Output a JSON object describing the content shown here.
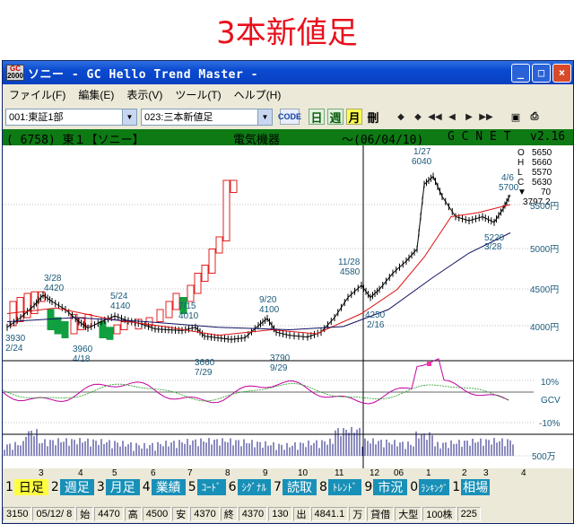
{
  "banner": {
    "title": "3本新値足"
  },
  "window": {
    "icon_text": "GC",
    "icon_sub": "2000",
    "title": "ソニー - GC Hello Trend Master -",
    "min": "_",
    "max": "□",
    "close": "×"
  },
  "menu": [
    "ファイル(F)",
    "編集(E)",
    "表示(V)",
    "ツール(T)",
    "ヘルプ(H)"
  ],
  "toolbar": {
    "market": "001:東証1部",
    "chart_type": "023:三本新値足",
    "code_btn": "CODE",
    "day_btn": "日",
    "week_btn": "週",
    "month_btn": "月",
    "list_btn": "刪",
    "nav": [
      "◆",
      "◆",
      "◀◀",
      "◀",
      "▶",
      "▶▶"
    ]
  },
  "info": {
    "code": "( 6758) 東１【ソニー】",
    "sector": "電気機器",
    "date": "〜(06/04/10)",
    "source": "G C N E T",
    "version": "v2.16"
  },
  "ohlc": {
    "o": "O",
    "o_val": "5650",
    "h": "H",
    "h_val": "5660",
    "l": "L",
    "l_val": "5570",
    "c": "C",
    "c_val": "5630",
    "chg_icon": "▼",
    "chg_val": "70",
    "ma_val": "3797.2"
  },
  "price_axis": [
    "5500円",
    "5000円",
    "4500円",
    "4000円"
  ],
  "osc_axis": [
    "10%",
    "GCV",
    "-10%"
  ],
  "vol_axis": "500万",
  "annotations": [
    {
      "text": "1/27"
    },
    {
      "text": "6040"
    },
    {
      "text": "4/6"
    },
    {
      "text": "5700"
    },
    {
      "text": "3/28"
    },
    {
      "text": "4420"
    },
    {
      "text": "5/24"
    },
    {
      "text": "4140"
    },
    {
      "text": "7/15"
    },
    {
      "text": "4010"
    },
    {
      "text": "9/20"
    },
    {
      "text": "4100"
    },
    {
      "text": "11/28"
    },
    {
      "text": "4580"
    },
    {
      "text": "5220"
    },
    {
      "text": "3/28"
    },
    {
      "text": "4250"
    },
    {
      "text": "2/16"
    },
    {
      "text": "3930"
    },
    {
      "text": "2/24"
    },
    {
      "text": "3960"
    },
    {
      "text": "4/18"
    },
    {
      "text": "3660"
    },
    {
      "text": "7/29"
    },
    {
      "text": "3790"
    },
    {
      "text": "9/29"
    }
  ],
  "months": [
    "3",
    "4",
    "5",
    "6",
    "7",
    "8",
    "9",
    "10",
    "11",
    "12",
    "06",
    "1",
    "2",
    "3",
    "4"
  ],
  "tabs": [
    {
      "num": "1",
      "label": "日足"
    },
    {
      "num": "2",
      "label": "週足"
    },
    {
      "num": "3",
      "label": "月足"
    },
    {
      "num": "4",
      "label": "業績"
    },
    {
      "num": "5",
      "label": "ｺｰﾄﾞ"
    },
    {
      "num": "6",
      "label": "ｼｸﾞﾅﾙ"
    },
    {
      "num": "7",
      "label": "読取"
    },
    {
      "num": "8",
      "label": "ﾄﾚﾝﾄﾞ"
    },
    {
      "num": "9",
      "label": "市況"
    },
    {
      "num": "0",
      "label": "ﾗﾝｷﾝｸﾞ"
    },
    {
      "num": "1",
      "label": "相場"
    }
  ],
  "status": [
    "3150",
    "05/12/ 8",
    "始",
    "4470",
    "高",
    "4500",
    "安",
    "4370",
    "終",
    "4370",
    "130",
    "出",
    "4841.1",
    "万",
    "貸借",
    "大型",
    "100株",
    "225"
  ]
}
